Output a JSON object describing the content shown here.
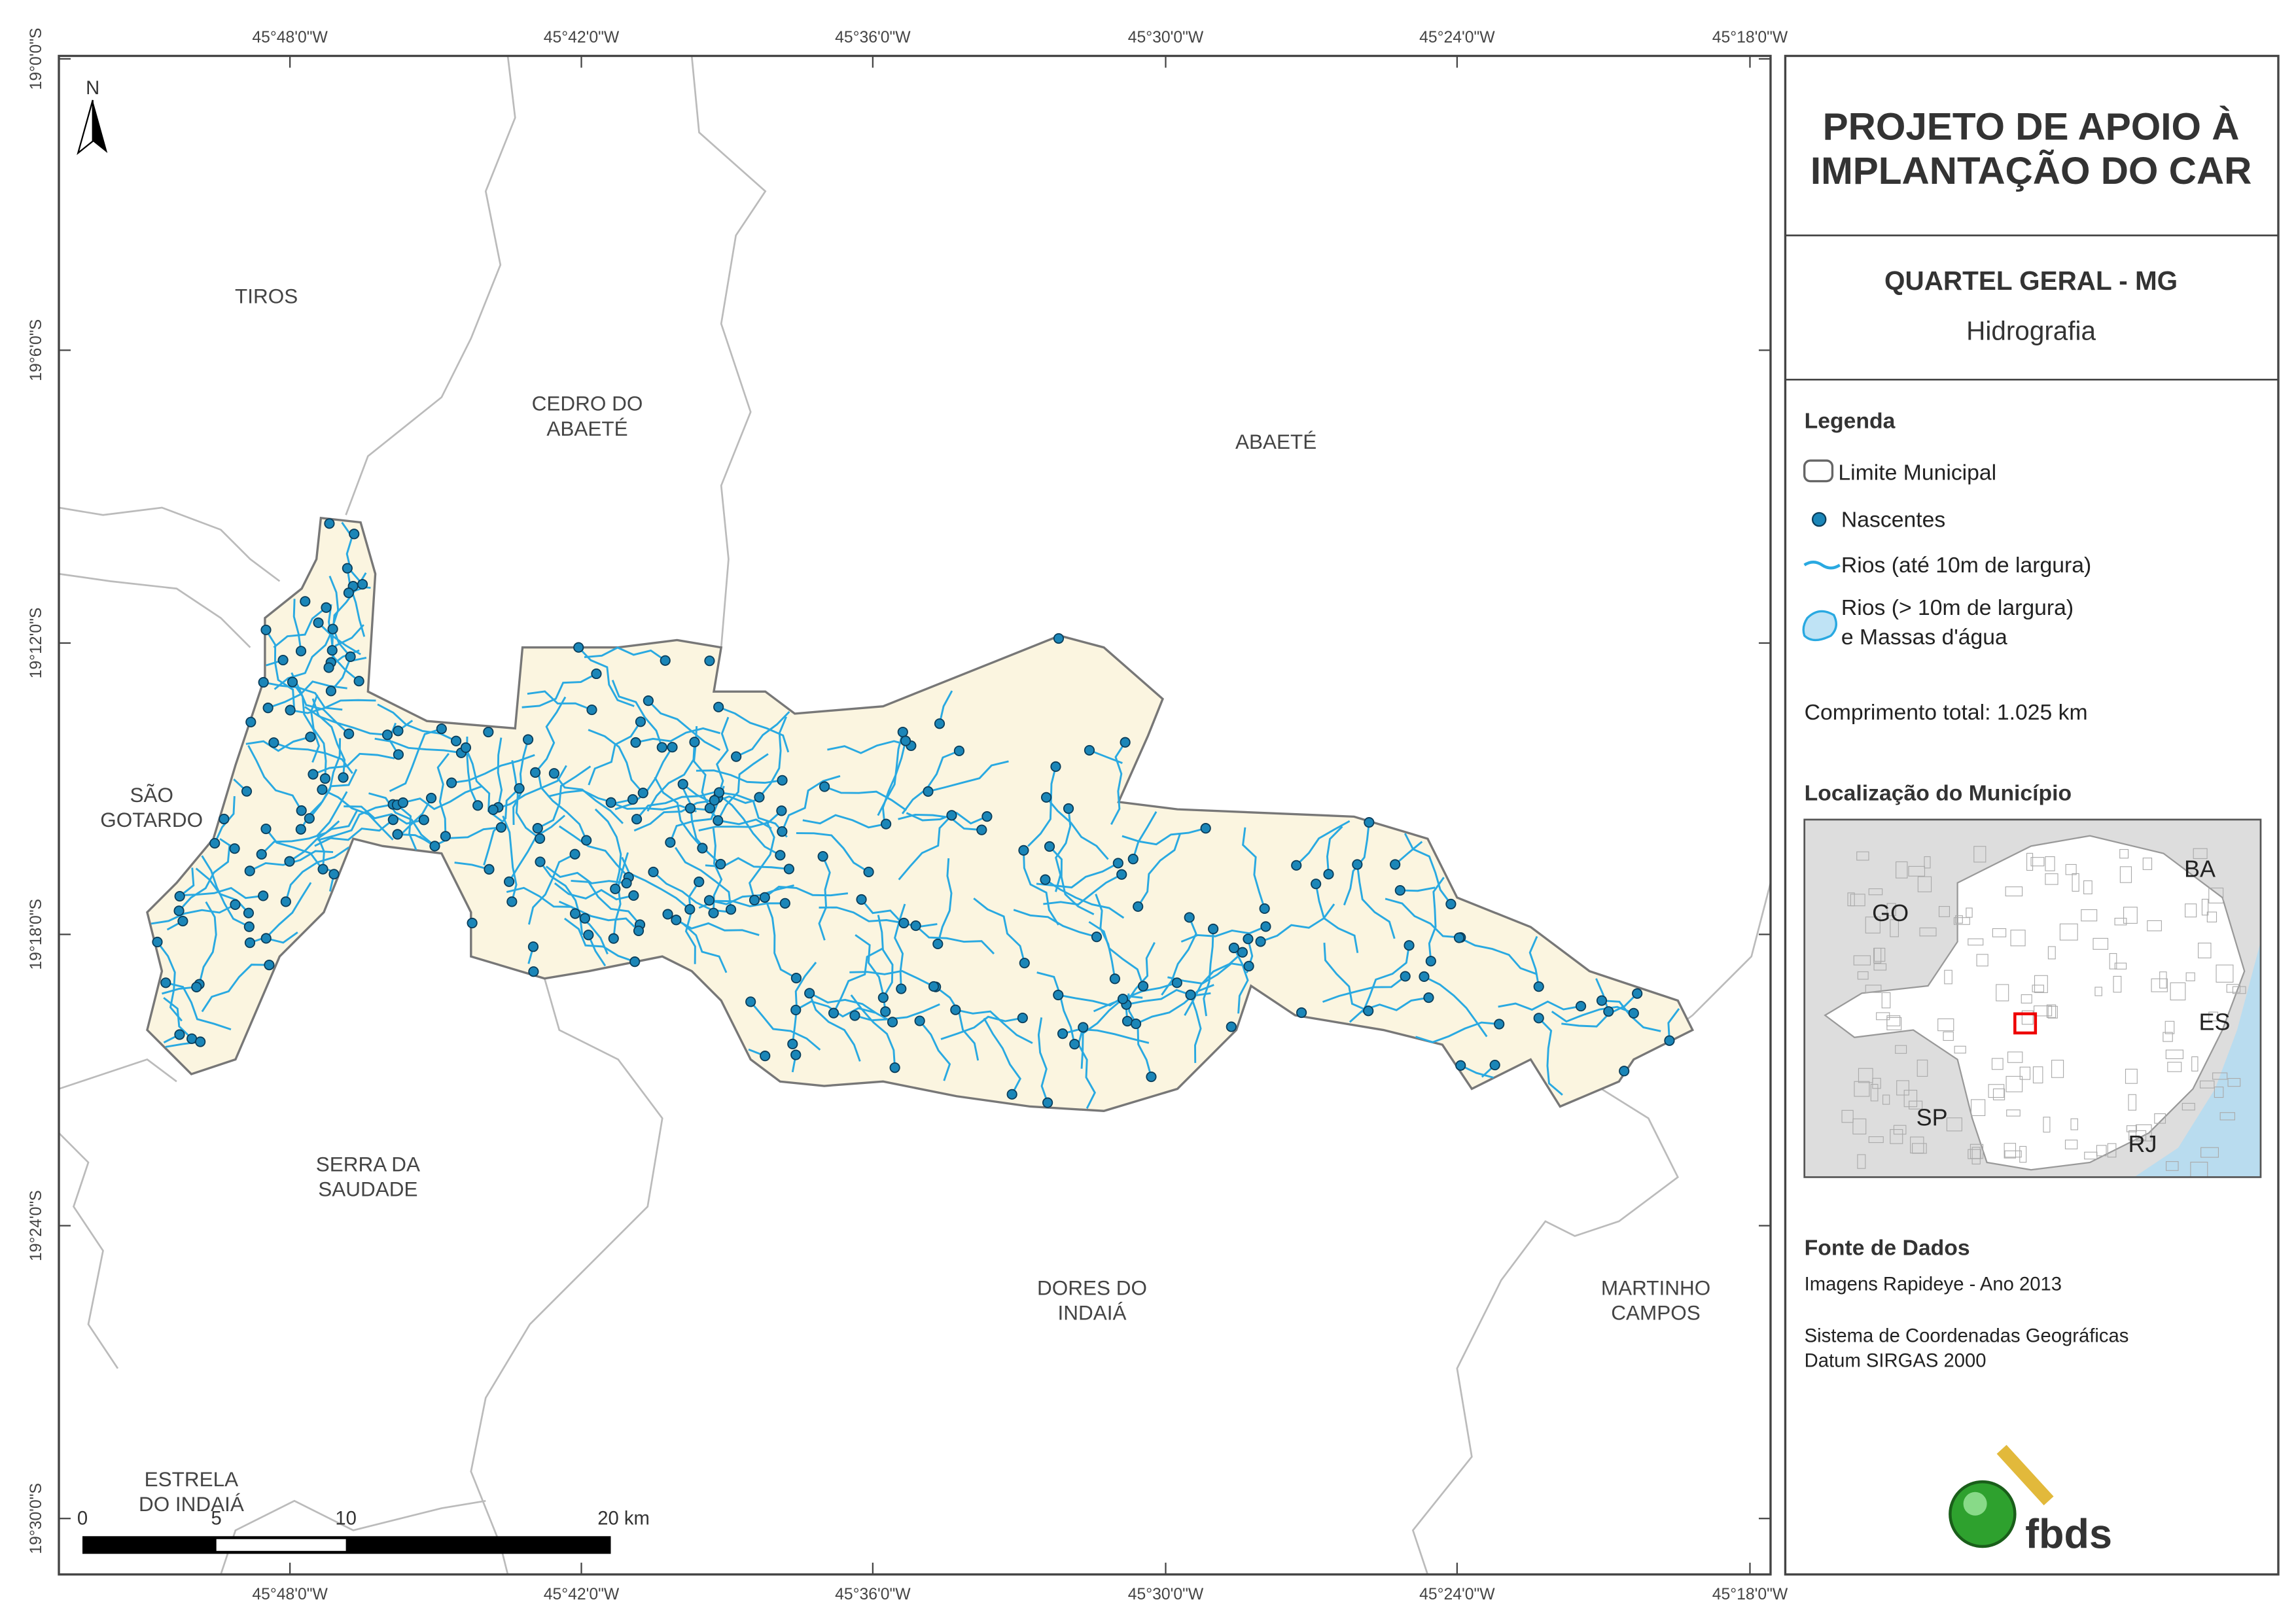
{
  "map": {
    "longitude_labels": [
      "45°48'0\"W",
      "45°42'0\"W",
      "45°36'0\"W",
      "45°30'0\"W",
      "45°24'0\"W",
      "45°18'0\"W"
    ],
    "latitude_labels": [
      "19°0'0\"S",
      "19°6'0\"S",
      "19°12'0\"S",
      "19°18'0\"S",
      "19°24'0\"S",
      "19°30'0\"S"
    ],
    "places": [
      {
        "lines": [
          "TIROS"
        ]
      },
      {
        "lines": [
          "CEDRO DO",
          "ABAETÉ"
        ]
      },
      {
        "lines": [
          "ABAETÉ"
        ]
      },
      {
        "lines": [
          "SÃO",
          "GOTARDO"
        ]
      },
      {
        "lines": [
          "SERRA DA",
          "SAUDADE"
        ]
      },
      {
        "lines": [
          "DORES DO",
          "INDAIÁ"
        ]
      },
      {
        "lines": [
          "MARTINHO",
          "CAMPOS"
        ]
      },
      {
        "lines": [
          "ESTRELA",
          "DO INDAIÁ"
        ]
      }
    ],
    "north": "N",
    "scale_labels": [
      "0",
      "5",
      "10",
      "20 km"
    ]
  },
  "panel": {
    "title_lines": [
      "PROJETO DE APOIO À",
      "IMPLANTAÇÃO DO CAR"
    ],
    "municipality": "QUARTEL GERAL - MG",
    "theme": "Hidrografia",
    "legend_title": "Legenda",
    "legend_items": [
      {
        "lines": [
          "Limite Municipal"
        ]
      },
      {
        "lines": [
          "Nascentes"
        ]
      },
      {
        "lines": [
          "Rios (até 10m de largura)"
        ]
      },
      {
        "lines": [
          "Rios (> 10m de largura)",
          "e Massas d'água"
        ]
      }
    ],
    "total_length": "Comprimento total:  1.025 km",
    "location_title": "Localização do Município",
    "inset_labels": [
      "GO",
      "BA",
      "ES",
      "SP",
      "RJ"
    ],
    "source_title": "Fonte de Dados",
    "source_lines": [
      "Imagens Rapideye - Ano 2013",
      "Sistema de Coordenadas Geográficas",
      "Datum SIRGAS 2000"
    ],
    "logo": "fbds"
  }
}
